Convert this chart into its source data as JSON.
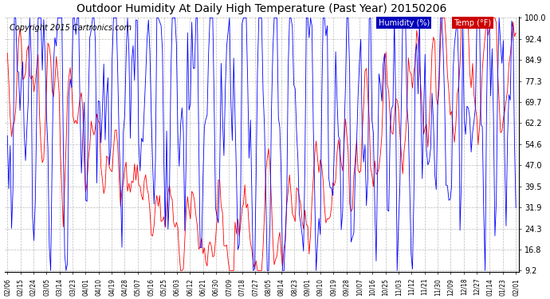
{
  "title": "Outdoor Humidity At Daily High Temperature (Past Year) 20150206",
  "copyright": "Copyright 2015 Cartronics.com",
  "legend_humidity": "Humidity (%)",
  "legend_temp": "Temp (°F)",
  "humidity_color": "#0000FF",
  "temp_color": "#FF0000",
  "humidity_legend_bg": "#0000BB",
  "temp_legend_bg": "#CC0000",
  "yticks": [
    9.2,
    16.8,
    24.3,
    31.9,
    39.5,
    47.0,
    54.6,
    62.2,
    69.7,
    77.3,
    84.9,
    92.4,
    100.0
  ],
  "ylim_min": 9.2,
  "ylim_max": 100.0,
  "background_color": "#FFFFFF",
  "grid_color": "#AAAAAA",
  "title_fontsize": 10,
  "copyright_fontsize": 7,
  "xtick_labels": [
    "02/06",
    "02/15",
    "02/24",
    "03/05",
    "03/14",
    "03/23",
    "04/01",
    "04/10",
    "04/19",
    "04/28",
    "05/07",
    "05/16",
    "05/25",
    "06/03",
    "06/12",
    "06/21",
    "06/30",
    "07/09",
    "07/18",
    "07/27",
    "08/05",
    "08/14",
    "08/23",
    "09/01",
    "09/10",
    "09/19",
    "09/28",
    "10/07",
    "10/16",
    "10/25",
    "11/03",
    "11/12",
    "11/21",
    "11/30",
    "12/09",
    "12/18",
    "12/27",
    "01/14",
    "01/23",
    "02/01"
  ]
}
